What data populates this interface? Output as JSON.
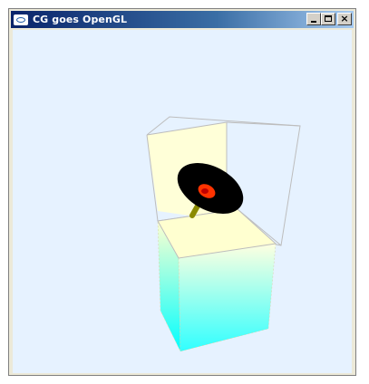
{
  "window": {
    "title": "CG goes OpenGL",
    "controls": {
      "minimize_icon": "minimize-icon",
      "maximize_icon": "maximize-icon",
      "close_icon": "close-icon",
      "close_glyph": "×"
    }
  },
  "scene": {
    "background_color": "#e6f2ff",
    "upper_box_color": "#ffffd8",
    "lower_box_top_color": "#ffffd0",
    "lower_box_bottom_color": "#00ffff",
    "disc_color": "#000000",
    "center_color": "#ff3300",
    "axle_color": "#8a8a00",
    "edge_color": "#bdbdbd"
  }
}
